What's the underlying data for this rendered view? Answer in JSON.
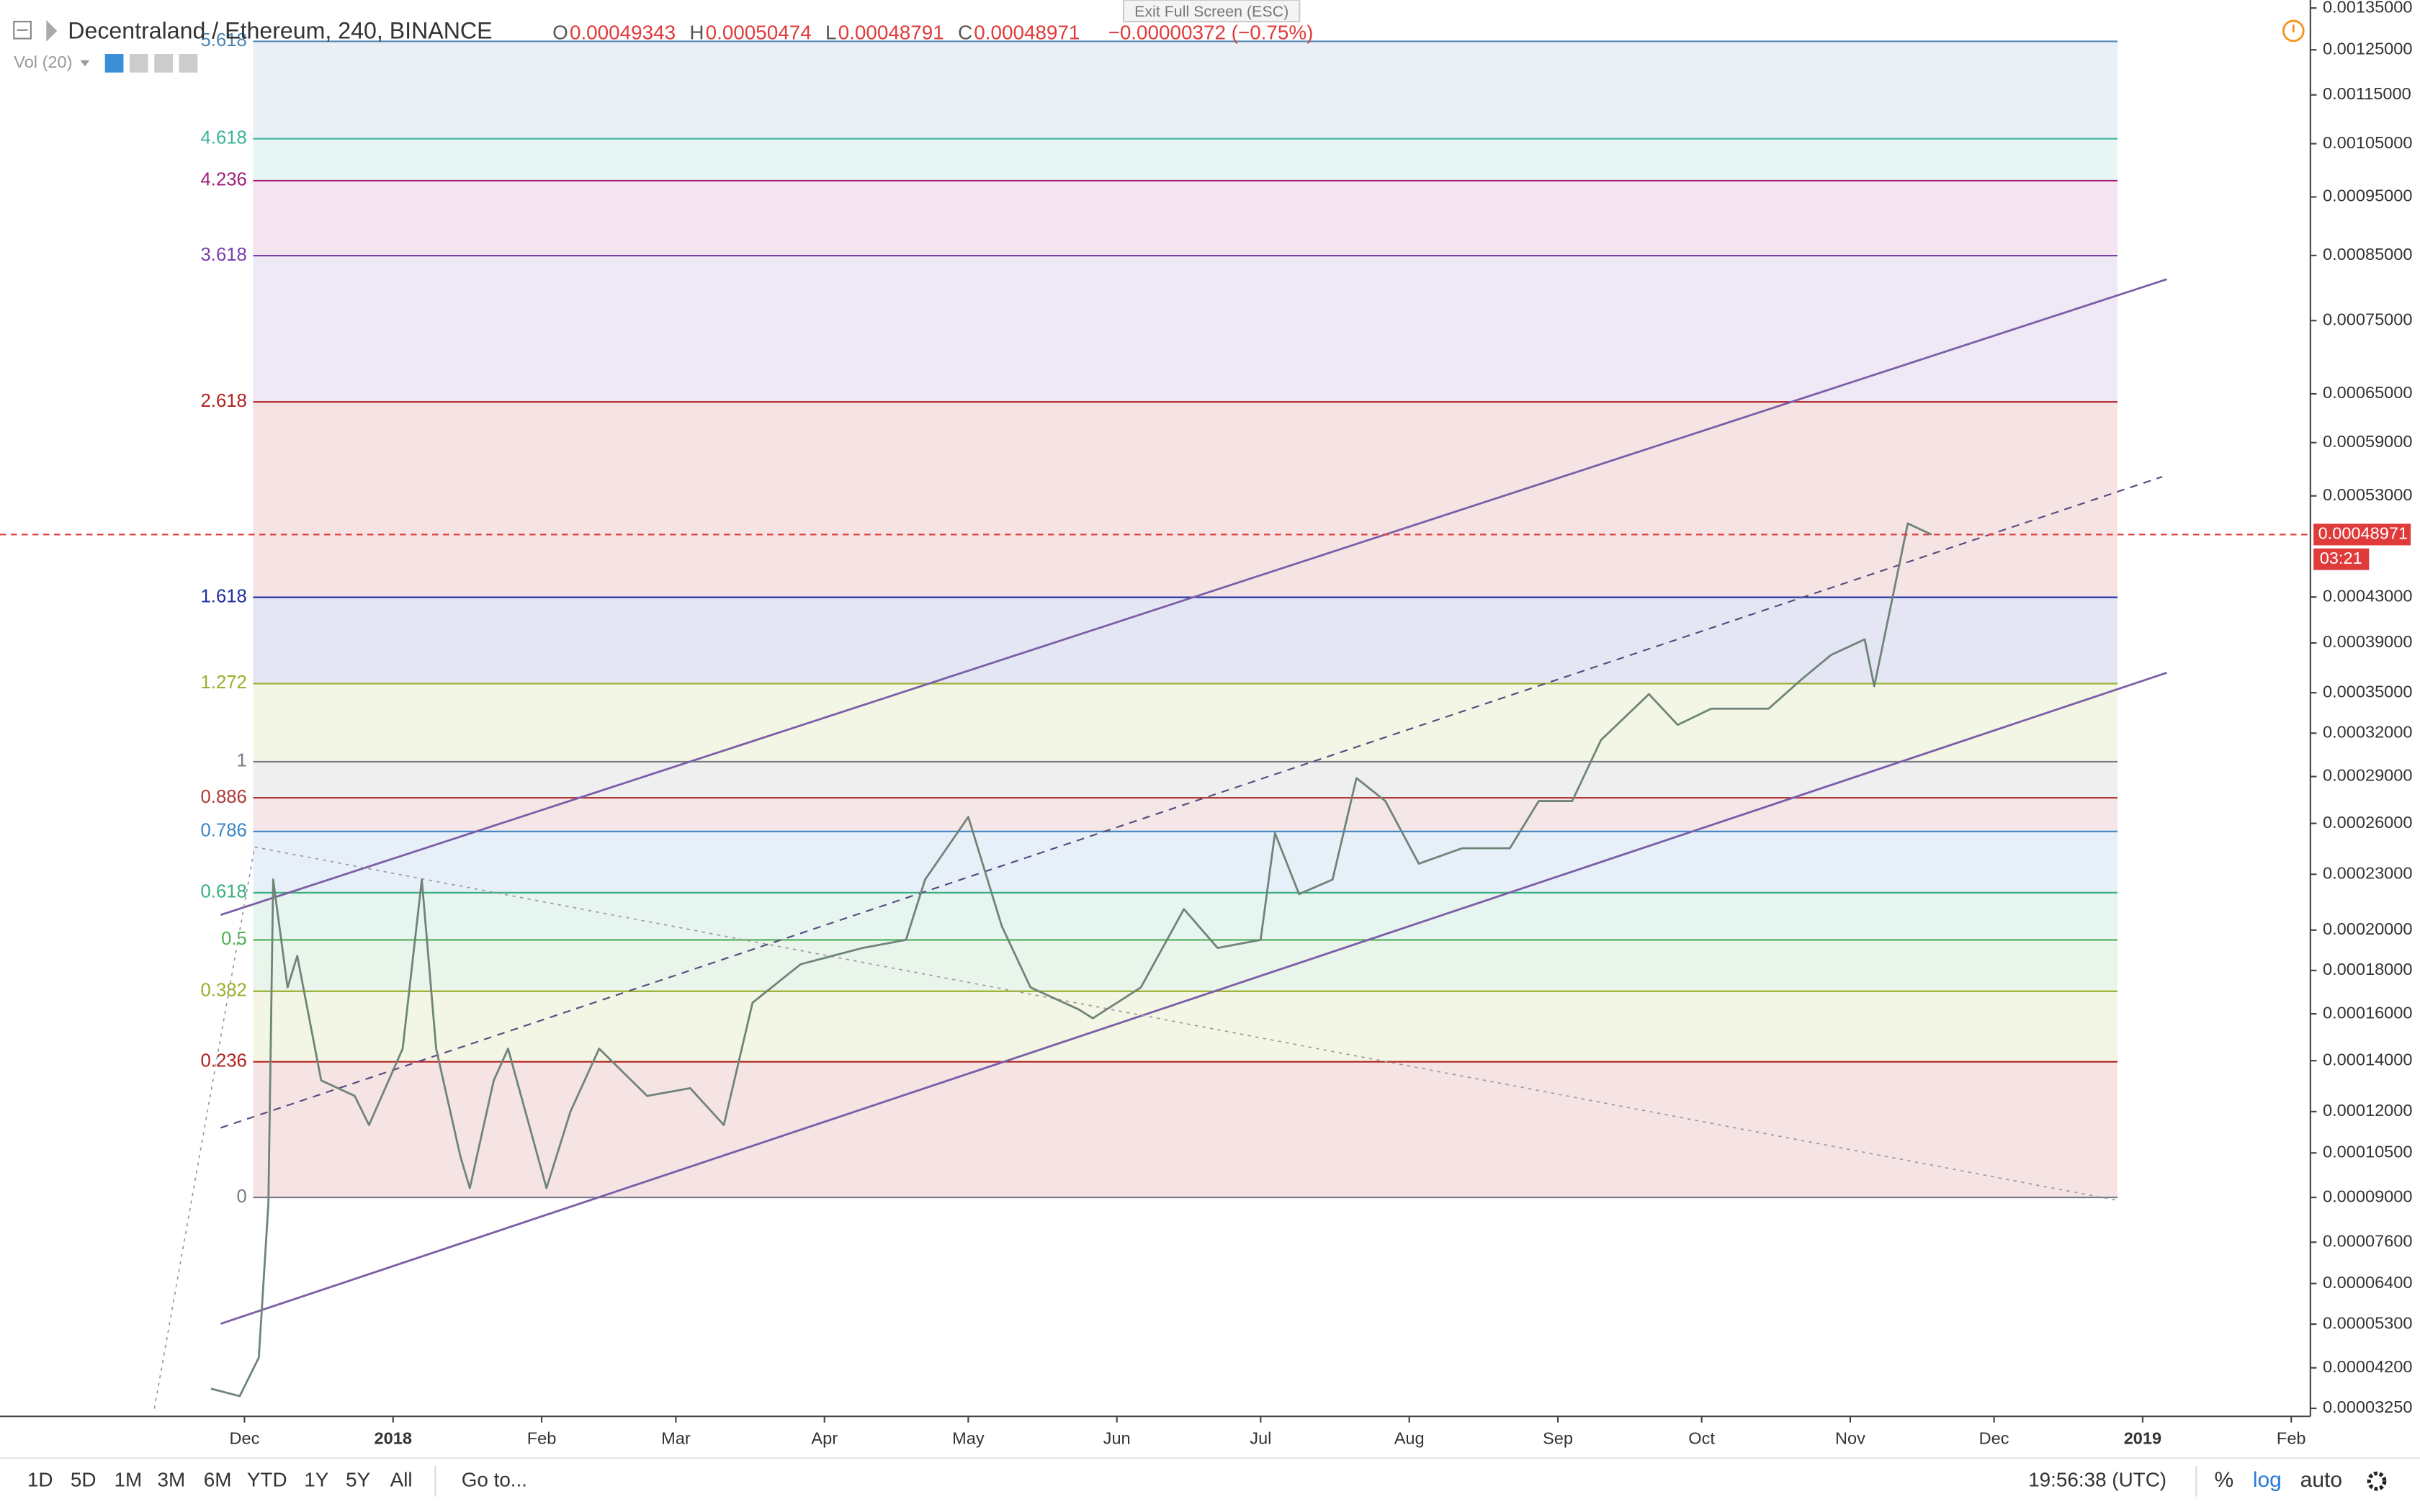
{
  "header": {
    "symbol": "Decentraland / Ethereum, 240, BINANCE",
    "ohlc": [
      {
        "key": "O",
        "value": "0.00049343"
      },
      {
        "key": "H",
        "value": "0.00050474"
      },
      {
        "key": "L",
        "value": "0.00048791"
      },
      {
        "key": "C",
        "value": "0.00048971"
      }
    ],
    "change": "−0.00000372 (−0.75%)",
    "indicator": "Vol (20)",
    "tooltip": "Exit Full Screen (ESC)"
  },
  "chart_data": {
    "type": "line",
    "log_scale": true,
    "color": "#6f8478",
    "x": [
      "2017-11-24",
      "2017-11-30",
      "2017-12-04",
      "2017-12-06",
      "2017-12-07",
      "2017-12-10",
      "2017-12-12",
      "2017-12-17",
      "2017-12-24",
      "2017-12-27",
      "2018-01-03",
      "2018-01-07",
      "2018-01-10",
      "2018-01-15",
      "2018-01-17",
      "2018-01-22",
      "2018-01-25",
      "2018-02-02",
      "2018-02-07",
      "2018-02-13",
      "2018-02-23",
      "2018-03-04",
      "2018-03-11",
      "2018-03-17",
      "2018-03-27",
      "2018-04-09",
      "2018-04-18",
      "2018-04-22",
      "2018-05-01",
      "2018-05-08",
      "2018-05-14",
      "2018-05-24",
      "2018-05-27",
      "2018-06-06",
      "2018-06-15",
      "2018-06-22",
      "2018-07-01",
      "2018-07-04",
      "2018-07-09",
      "2018-07-16",
      "2018-07-21",
      "2018-07-27",
      "2018-08-03",
      "2018-08-12",
      "2018-08-22",
      "2018-08-28",
      "2018-09-04",
      "2018-09-10",
      "2018-09-20",
      "2018-09-26",
      "2018-10-03",
      "2018-10-09",
      "2018-10-15",
      "2018-10-22",
      "2018-10-28",
      "2018-11-04",
      "2018-11-06",
      "2018-11-11",
      "2018-11-13",
      "2018-11-18"
    ],
    "values": [
      3.7e-05,
      3.53e-05,
      4.45e-05,
      8.8e-05,
      0.000227,
      0.000172,
      0.000187,
      0.000132,
      0.000126,
      0.000115,
      0.000145,
      0.000227,
      0.000145,
      0.000104,
      9.3e-05,
      0.000132,
      0.000145,
      9.3e-05,
      0.00012,
      0.000145,
      0.000126,
      0.000129,
      0.000115,
      0.000165,
      0.000183,
      0.000191,
      0.000195,
      0.000227,
      0.000264,
      0.000202,
      0.000172,
      0.000162,
      0.000158,
      0.000172,
      0.000211,
      0.000191,
      0.000195,
      0.000254,
      0.000219,
      0.000227,
      0.000289,
      0.000274,
      0.000236,
      0.000245,
      0.000245,
      0.000274,
      0.000274,
      0.000315,
      0.000349,
      0.000326,
      0.000338,
      0.000338,
      0.000338,
      0.000361,
      0.00038,
      0.000393,
      0.000355,
      0.000455,
      0.000501,
      0.00048971
    ],
    "xlim": [
      "2017-10-11",
      "2019-02-05"
    ],
    "xticks": [
      {
        "value": "2017-12-01",
        "label": "Dec"
      },
      {
        "value": "2018-01-01",
        "label": "2018"
      },
      {
        "value": "2018-02-01",
        "label": "Feb"
      },
      {
        "value": "2018-03-01",
        "label": "Mar"
      },
      {
        "value": "2018-04-01",
        "label": "Apr"
      },
      {
        "value": "2018-05-01",
        "label": "May"
      },
      {
        "value": "2018-06-01",
        "label": "Jun"
      },
      {
        "value": "2018-07-01",
        "label": "Jul"
      },
      {
        "value": "2018-08-01",
        "label": "Aug"
      },
      {
        "value": "2018-09-01",
        "label": "Sep"
      },
      {
        "value": "2018-10-01",
        "label": "Oct"
      },
      {
        "value": "2018-11-01",
        "label": "Nov"
      },
      {
        "value": "2018-12-01",
        "label": "Dec"
      },
      {
        "value": "2019-01-01",
        "label": "2019"
      },
      {
        "value": "2019-02-01",
        "label": "Feb"
      }
    ],
    "ylim": [
      3.07e-05,
      0.00137
    ],
    "yticks": [
      {
        "value": 0.00135,
        "label": "0.00135000"
      },
      {
        "value": 0.00125,
        "label": "0.00125000"
      },
      {
        "value": 0.00115,
        "label": "0.00115000"
      },
      {
        "value": 0.00105,
        "label": "0.00105000"
      },
      {
        "value": 0.00095,
        "label": "0.00095000"
      },
      {
        "value": 0.00085,
        "label": "0.00085000"
      },
      {
        "value": 0.00075,
        "label": "0.00075000"
      },
      {
        "value": 0.00065,
        "label": "0.00065000"
      },
      {
        "value": 0.00059,
        "label": "0.00059000"
      },
      {
        "value": 0.00053,
        "label": "0.00053000"
      },
      {
        "value": 0.00043,
        "label": "0.00043000"
      },
      {
        "value": 0.00039,
        "label": "0.00039000"
      },
      {
        "value": 0.00035,
        "label": "0.00035000"
      },
      {
        "value": 0.00032,
        "label": "0.00032000"
      },
      {
        "value": 0.00029,
        "label": "0.00029000"
      },
      {
        "value": 0.00026,
        "label": "0.00026000"
      },
      {
        "value": 0.00023,
        "label": "0.00023000"
      },
      {
        "value": 0.0002,
        "label": "0.00020000"
      },
      {
        "value": 0.00018,
        "label": "0.00018000"
      },
      {
        "value": 0.00016,
        "label": "0.00016000"
      },
      {
        "value": 0.00014,
        "label": "0.00014000"
      },
      {
        "value": 0.00012,
        "label": "0.00012000"
      },
      {
        "value": 0.000105,
        "label": "0.00010500"
      },
      {
        "value": 9e-05,
        "label": "0.00009000"
      },
      {
        "value": 7.6e-05,
        "label": "0.00007600"
      },
      {
        "value": 6.4e-05,
        "label": "0.00006400"
      },
      {
        "value": 5.3e-05,
        "label": "0.00005300"
      },
      {
        "value": 4.2e-05,
        "label": "0.00004200"
      },
      {
        "value": 3.25e-05,
        "label": "0.00003250"
      }
    ],
    "price_line": {
      "value": 0.00048971,
      "countdown": "03:21",
      "color": "#e03b3b"
    },
    "fib": {
      "start": 9e-05,
      "end": 0.0003,
      "levels": [
        0,
        0.236,
        0.382,
        0.5,
        0.618,
        0.786,
        0.886,
        1,
        1.272,
        1.618,
        2.618,
        3.618,
        4.236,
        4.618,
        5.618
      ],
      "colors": [
        "#787b86",
        "#b22222",
        "#9ab02c",
        "#4caf50",
        "#3cb080",
        "#3d85c6",
        "#b03a3a",
        "#787b86",
        "#9ab02c",
        "#1f2fa0",
        "#b22222",
        "#7b3fb0",
        "#a0207a",
        "#3cb39a",
        "#4f86b0"
      ]
    }
  },
  "toolbar": {
    "ranges": [
      "1D",
      "5D",
      "1M",
      "3M",
      "6M",
      "YTD",
      "1Y",
      "5Y",
      "All"
    ],
    "goto": "Go to...",
    "clock": "19:56:38 (UTC)",
    "scale_buttons": [
      "%",
      "log",
      "auto"
    ]
  }
}
